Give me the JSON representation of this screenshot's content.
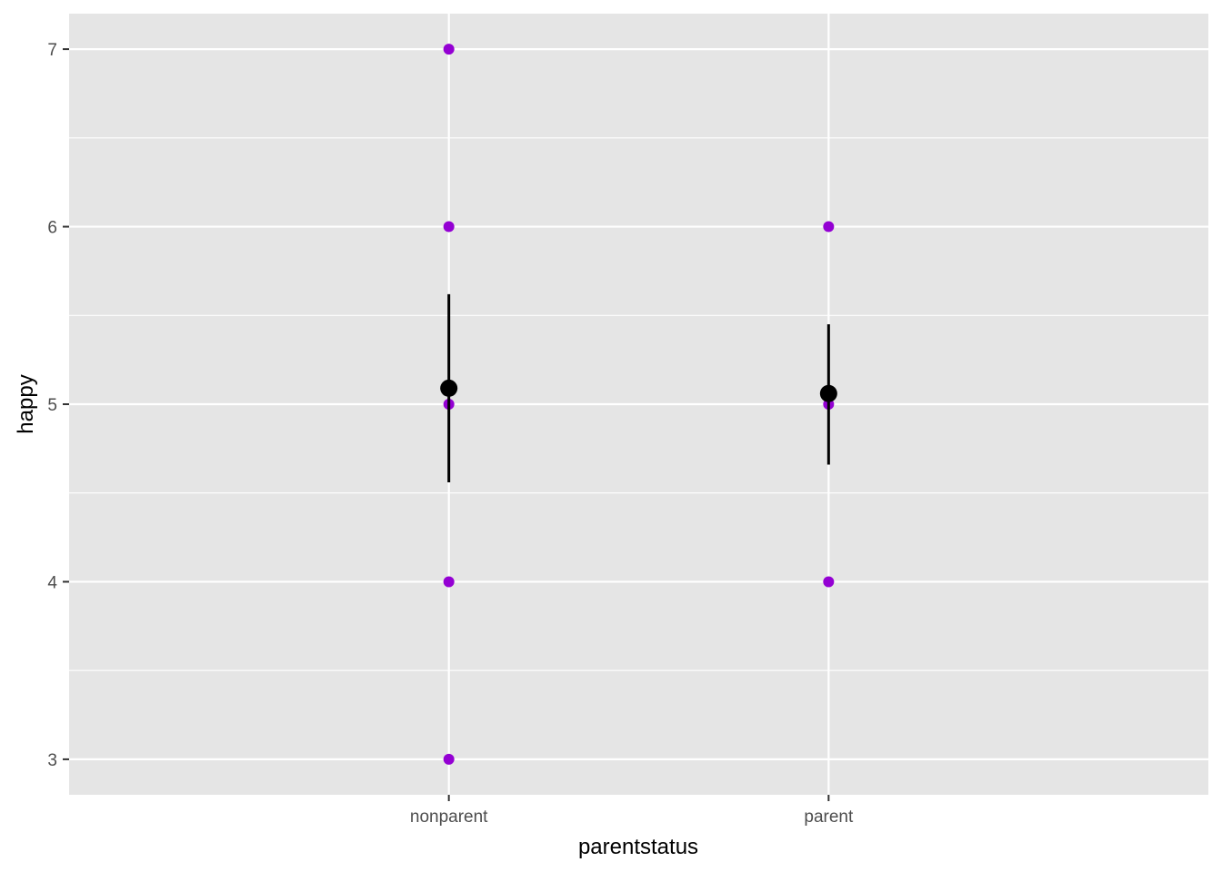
{
  "chart_data": {
    "type": "scatter",
    "xlabel": "parentstatus",
    "ylabel": "happy",
    "categories": [
      "nonparent",
      "parent"
    ],
    "ylim": [
      2.8,
      7.2
    ],
    "y_ticks": [
      "3",
      "4",
      "5",
      "6",
      "7"
    ],
    "y_minor_ticks": [
      3.5,
      4.5,
      5.5,
      6.5
    ],
    "grid": true,
    "points": [
      {
        "x": "nonparent",
        "y": 7
      },
      {
        "x": "nonparent",
        "y": 6
      },
      {
        "x": "nonparent",
        "y": 5
      },
      {
        "x": "nonparent",
        "y": 4
      },
      {
        "x": "nonparent",
        "y": 3
      },
      {
        "x": "parent",
        "y": 6
      },
      {
        "x": "parent",
        "y": 5
      },
      {
        "x": "parent",
        "y": 4
      }
    ],
    "summary": [
      {
        "x": "nonparent",
        "mean": 5.09,
        "lower": 4.56,
        "upper": 5.62
      },
      {
        "x": "parent",
        "mean": 5.06,
        "lower": 4.66,
        "upper": 5.45
      }
    ],
    "colors": {
      "panel_background": "#e5e5e5",
      "grid": "#ffffff",
      "points": "#9400d3",
      "summary": "#000000"
    }
  }
}
